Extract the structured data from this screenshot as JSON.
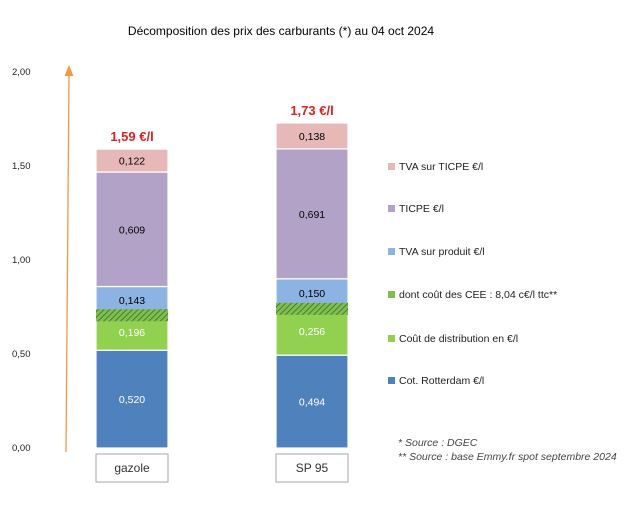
{
  "chart_data": {
    "type": "bar",
    "stacked": true,
    "title": "Décomposition des prix des carburants (*) au 04 oct 2024",
    "categories": [
      "gazole",
      "SP 95"
    ],
    "totals": [
      "1,59 €/l",
      "1,73 €/l"
    ],
    "ylim": [
      0,
      2
    ],
    "yticks": [
      "0,00",
      "0,50",
      "1,00",
      "1,50",
      "2,00"
    ],
    "grid": false,
    "legend_position": "right",
    "series": [
      {
        "name": "Cot. Rotterdam €/l",
        "values": [
          0.52,
          0.494
        ],
        "labels": [
          "0,520",
          "0,494"
        ],
        "color": "#4f81bd",
        "label_color": "#ffffff"
      },
      {
        "name": "Coût de distribution en €/l",
        "values": [
          0.196,
          0.256
        ],
        "labels": [
          "0,196",
          "0,256"
        ],
        "color": "#92d050",
        "label_color": "#ffffff"
      },
      {
        "name": "dont coût des CEE : 8,04 c€/l ttc**",
        "values": [
          0.0804,
          0.0804
        ],
        "labels": [
          "",
          ""
        ],
        "color": "#7fbf4d",
        "hatched": true,
        "overlay": true
      },
      {
        "name": "TVA sur produit €/l",
        "values": [
          0.143,
          0.15
        ],
        "labels": [
          "0,143",
          "0,150"
        ],
        "color": "#8db3e2",
        "label_color": "#000000"
      },
      {
        "name": "TICPE €/l",
        "values": [
          0.609,
          0.691
        ],
        "labels": [
          "0,609",
          "0,691"
        ],
        "color": "#b3a2c7",
        "label_color": "#000000"
      },
      {
        "name": "TVA sur TICPE €/l",
        "values": [
          0.122,
          0.138
        ],
        "labels": [
          "0,122",
          "0,138"
        ],
        "color": "#e6b9b8",
        "label_color": "#000000"
      }
    ],
    "legend_order": [
      5,
      4,
      3,
      2,
      1,
      0
    ],
    "annotations": [
      "* Source : DGEC",
      "** Source : base Emmy.fr spot  septembre 2024"
    ],
    "axis_arrow_color": "#f79646"
  }
}
